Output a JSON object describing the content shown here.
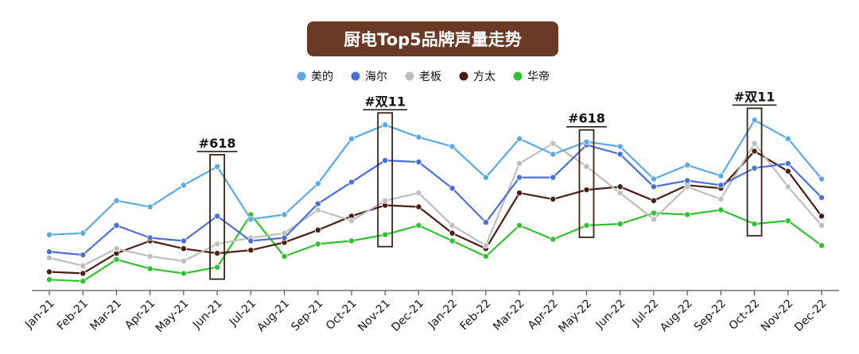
{
  "chart_data": {
    "type": "line",
    "title": "厨电Top5品牌声量走势",
    "xlabel": "",
    "ylabel": "",
    "ylim": [
      0,
      100
    ],
    "grid": false,
    "legend_position": "top-center",
    "categories": [
      "Jan-21",
      "Feb-21",
      "Mar-21",
      "Apr-21",
      "May-21",
      "Jun-21",
      "Jul-21",
      "Aug-21",
      "Sep-21",
      "Oct-21",
      "Nov-21",
      "Dec-21",
      "Jan-22",
      "Feb-22",
      "Mar-22",
      "Apr-22",
      "May-22",
      "Jun-22",
      "Jul-22",
      "Aug-22",
      "Sep-22",
      "Oct-22",
      "Nov-22",
      "Dec-22"
    ],
    "series": [
      {
        "name": "美的",
        "color": "#5aaae6",
        "values": [
          34,
          35,
          56,
          52,
          66,
          78,
          44,
          47,
          67,
          96,
          105,
          97,
          91,
          71,
          96,
          86,
          94,
          91,
          70,
          79,
          72,
          108,
          96,
          70
        ]
      },
      {
        "name": "海尔",
        "color": "#4a6fd8",
        "values": [
          23,
          21,
          40,
          32,
          30,
          46,
          30,
          32,
          54,
          68,
          82,
          81,
          64,
          42,
          71,
          71,
          92,
          86,
          65,
          69,
          66,
          77,
          80,
          58
        ]
      },
      {
        "name": "老板",
        "color": "#bebebe",
        "values": [
          19,
          14,
          25,
          20,
          17,
          28,
          32,
          35,
          50,
          43,
          56,
          61,
          40,
          27,
          80,
          93,
          78,
          61,
          44,
          65,
          57,
          93,
          65,
          40
        ]
      },
      {
        "name": "方太",
        "color": "#4a1e12",
        "values": [
          10,
          9,
          22,
          30,
          25,
          22,
          24,
          29,
          37,
          46,
          53,
          52,
          35,
          25,
          61,
          57,
          63,
          65,
          56,
          66,
          64,
          88,
          75,
          46
        ]
      },
      {
        "name": "华帝",
        "color": "#2fc42f",
        "values": [
          5,
          4,
          18,
          12,
          9,
          13,
          47,
          20,
          28,
          30,
          34,
          40,
          30,
          20,
          40,
          31,
          40,
          41,
          48,
          47,
          50,
          41,
          43,
          27
        ]
      }
    ],
    "annotations": [
      {
        "label": "#618",
        "center_index": 5
      },
      {
        "label": "#双11",
        "center_index": 10
      },
      {
        "label": "#618",
        "center_index": 16
      },
      {
        "label": "#双11",
        "center_index": 21
      }
    ]
  }
}
